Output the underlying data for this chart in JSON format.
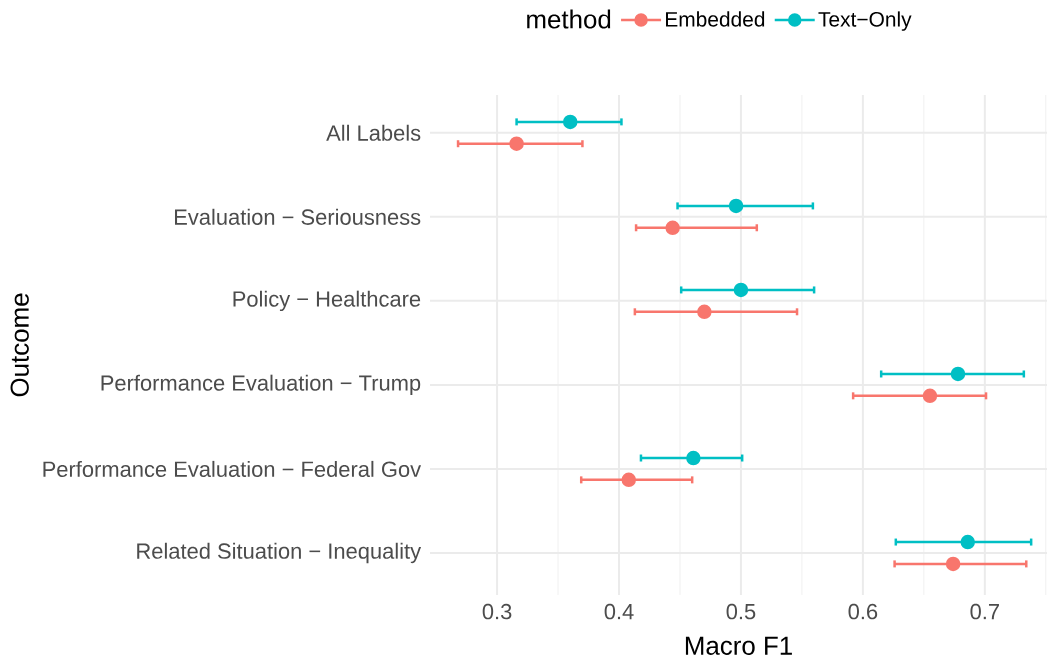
{
  "chart_data": {
    "type": "scatter",
    "orientation": "horizontal",
    "categories": [
      "All Labels",
      "Evaluation − Seriousness",
      "Policy − Healthcare",
      "Performance Evaluation − Trump",
      "Performance Evaluation − Federal Gov",
      "Related Situation − Inequality"
    ],
    "series": [
      {
        "name": "Embedded",
        "color": "#f8766d",
        "values": [
          0.316,
          0.444,
          0.47,
          0.655,
          0.408,
          0.674
        ],
        "errors": [
          [
            0.268,
            0.37
          ],
          [
            0.414,
            0.513
          ],
          [
            0.413,
            0.546
          ],
          [
            0.592,
            0.701
          ],
          [
            0.369,
            0.46
          ],
          [
            0.626,
            0.734
          ]
        ]
      },
      {
        "name": "Text−Only",
        "color": "#00bfc4",
        "values": [
          0.36,
          0.496,
          0.5,
          0.678,
          0.461,
          0.686
        ],
        "errors": [
          [
            0.316,
            0.402
          ],
          [
            0.448,
            0.559
          ],
          [
            0.451,
            0.56
          ],
          [
            0.615,
            0.732
          ],
          [
            0.418,
            0.501
          ],
          [
            0.627,
            0.738
          ]
        ]
      }
    ],
    "xlabel": "Macro F1",
    "ylabel": "Outcome",
    "legend_title": "method",
    "legend": "top",
    "xlim": [
      0.245,
      0.751
    ],
    "xticks": [
      0.3,
      {
        "value": 0.35,
        "label": null
      },
      0.4,
      {
        "value": 0.45,
        "label": null
      },
      0.5,
      {
        "value": 0.55,
        "label": null
      },
      0.6,
      {
        "value": 0.65,
        "label": null
      },
      0.7,
      {
        "value": 0.75,
        "label": null
      }
    ],
    "grid": true,
    "marker": "circle"
  }
}
